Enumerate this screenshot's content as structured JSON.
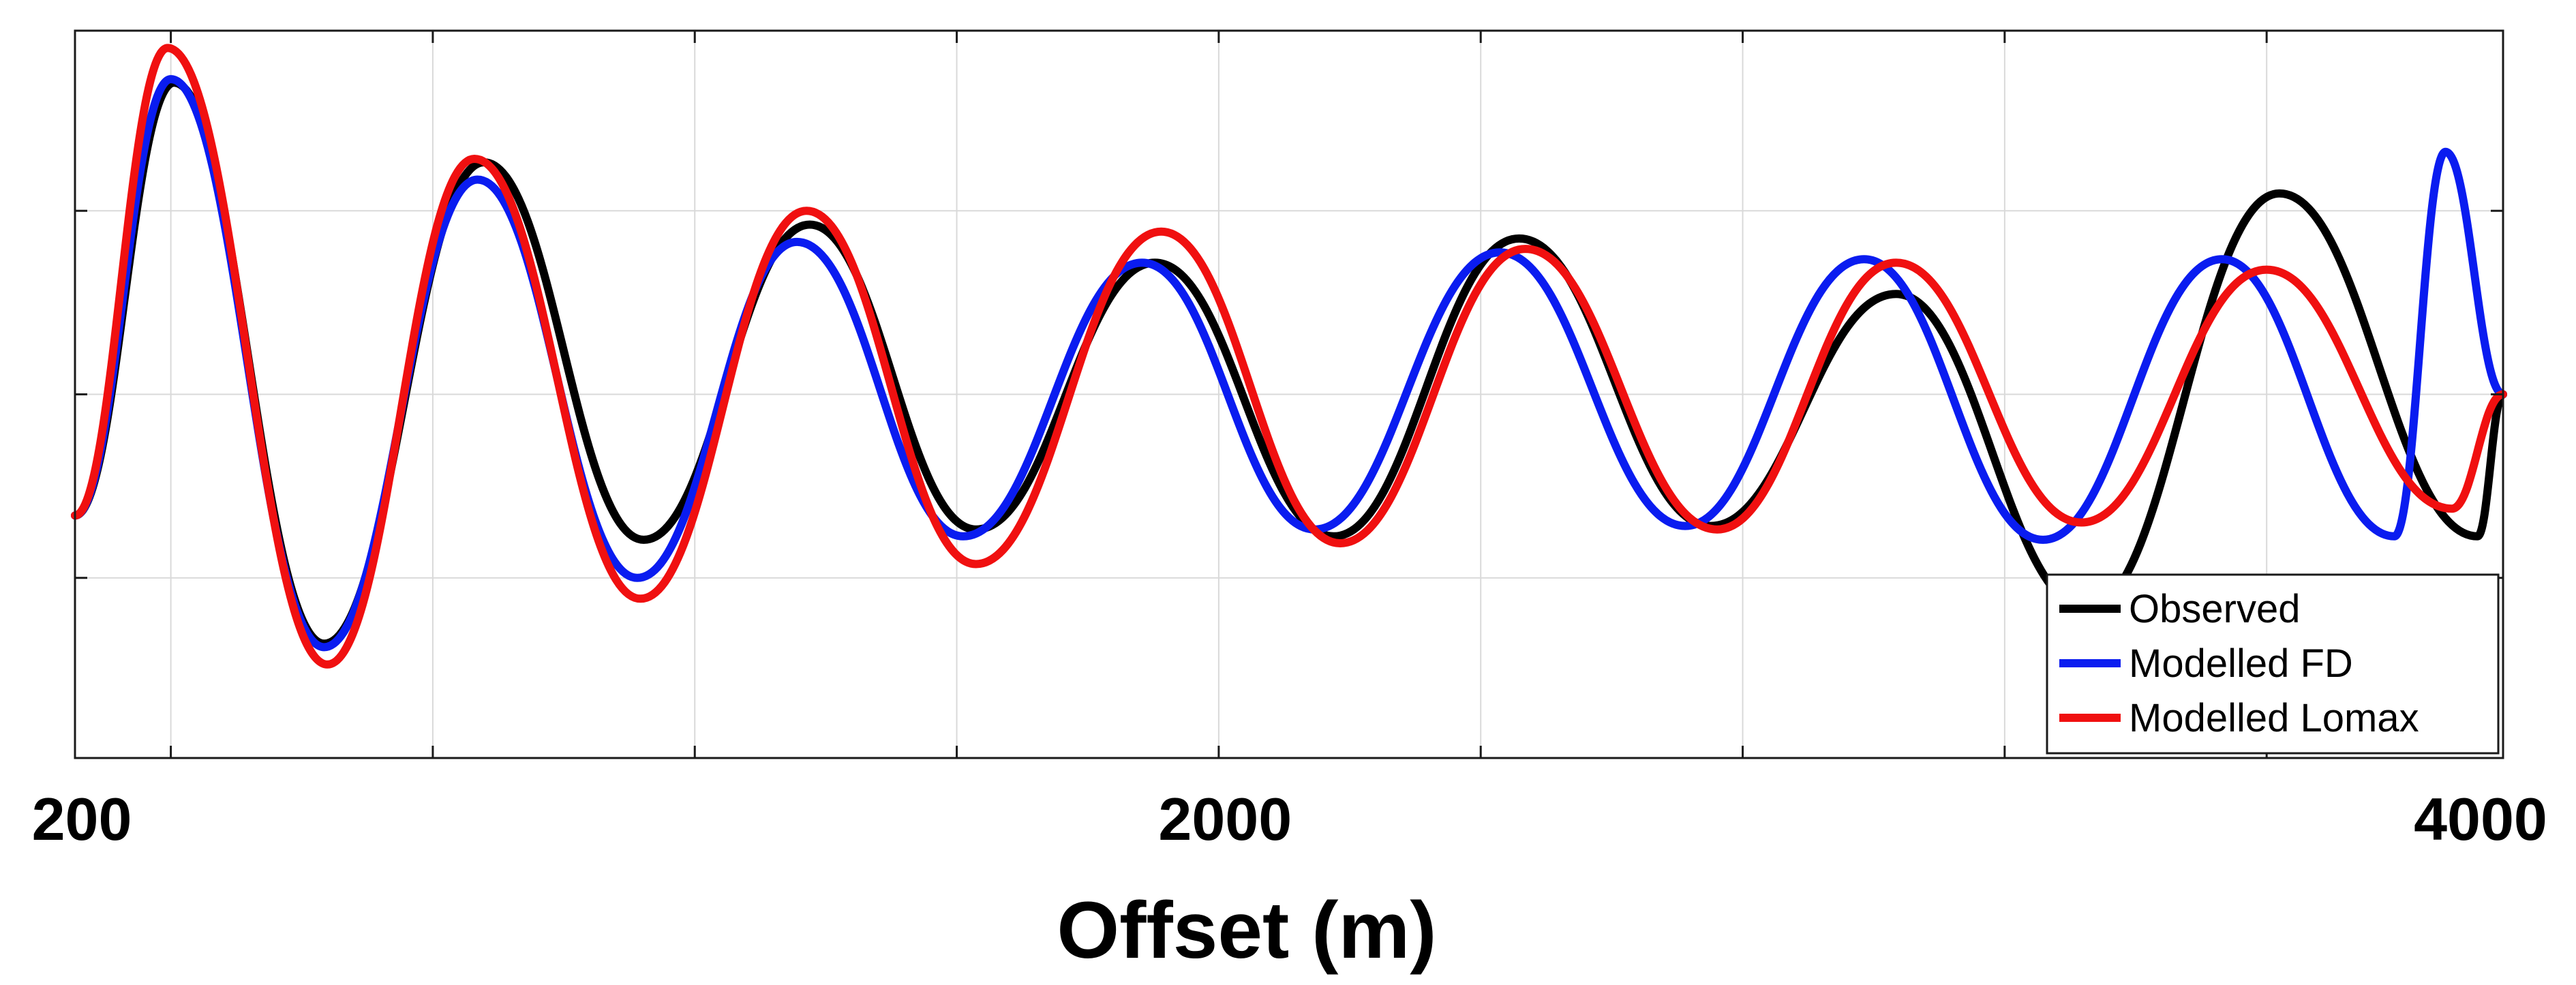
{
  "chart_data": {
    "type": "line",
    "title": "",
    "xlabel": "Offset (m)",
    "ylabel": "",
    "xlim": [
      200,
      4000
    ],
    "ylim": [
      -1.05,
      1.05
    ],
    "x_tick_labels": [
      {
        "value": 200,
        "label": "200"
      },
      {
        "value": 2000,
        "label": "2000"
      },
      {
        "value": 4000,
        "label": "4000"
      }
    ],
    "x_gridlines": [
      350,
      760,
      1170,
      1580,
      1990,
      2400,
      2810,
      3220,
      3630
    ],
    "y_gridlines": [
      -0.53,
      0.0,
      0.53
    ],
    "grid": true,
    "legend": "bottom-right",
    "series": [
      {
        "name": "Observed",
        "color": "#000000",
        "points": [
          [
            200,
            -0.35
          ],
          [
            355,
            0.9
          ],
          [
            590,
            -0.72
          ],
          [
            840,
            0.67
          ],
          [
            1090,
            -0.42
          ],
          [
            1350,
            0.49
          ],
          [
            1610,
            -0.39
          ],
          [
            1890,
            0.38
          ],
          [
            2170,
            -0.41
          ],
          [
            2460,
            0.45
          ],
          [
            2760,
            -0.38
          ],
          [
            3050,
            0.29
          ],
          [
            3350,
            -0.62
          ],
          [
            3650,
            0.58
          ],
          [
            3960,
            -0.41
          ],
          [
            4000,
            0.0
          ]
        ]
      },
      {
        "name": "Modelled FD",
        "color": "#0a1cf0",
        "points": [
          [
            200,
            -0.35
          ],
          [
            350,
            0.91
          ],
          [
            590,
            -0.73
          ],
          [
            830,
            0.62
          ],
          [
            1080,
            -0.53
          ],
          [
            1330,
            0.44
          ],
          [
            1590,
            -0.41
          ],
          [
            1870,
            0.38
          ],
          [
            2140,
            -0.39
          ],
          [
            2430,
            0.41
          ],
          [
            2720,
            -0.38
          ],
          [
            3000,
            0.39
          ],
          [
            3280,
            -0.42
          ],
          [
            3560,
            0.39
          ],
          [
            3830,
            -0.41
          ],
          [
            3910,
            0.7
          ],
          [
            4000,
            0.0
          ]
        ]
      },
      {
        "name": "Modelled Lomax",
        "color": "#f01010",
        "points": [
          [
            200,
            -0.35
          ],
          [
            345,
            1.0
          ],
          [
            595,
            -0.78
          ],
          [
            825,
            0.68
          ],
          [
            1085,
            -0.59
          ],
          [
            1345,
            0.53
          ],
          [
            1610,
            -0.49
          ],
          [
            1900,
            0.47
          ],
          [
            2180,
            -0.43
          ],
          [
            2470,
            0.42
          ],
          [
            2770,
            -0.39
          ],
          [
            3050,
            0.38
          ],
          [
            3340,
            -0.37
          ],
          [
            3630,
            0.36
          ],
          [
            3920,
            -0.33
          ],
          [
            4000,
            0.0
          ]
        ]
      }
    ]
  }
}
